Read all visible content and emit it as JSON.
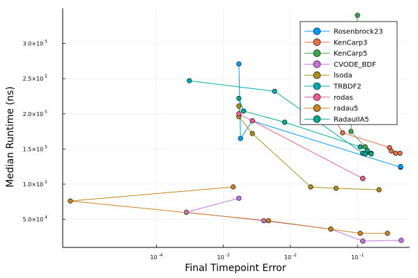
{
  "chart_data": {
    "type": "line",
    "xlabel": "Final Timepoint Error",
    "ylabel": "Median Runtime (ns)",
    "xscale": "log",
    "xlim": [
      4e-06,
      0.6
    ],
    "ylim": [
      10000,
      350000
    ],
    "x_ticks": [
      {
        "value": 0.0001,
        "label": "10",
        "exp": "-4"
      },
      {
        "value": 0.001,
        "label": "10",
        "exp": "-3"
      },
      {
        "value": 0.01,
        "label": "10",
        "exp": "-2"
      },
      {
        "value": 0.1,
        "label": "10",
        "exp": "-1"
      }
    ],
    "y_ticks": [
      {
        "value": 50000,
        "label": "5.0×10",
        "exp": "4"
      },
      {
        "value": 100000,
        "label": "1.0×10",
        "exp": "5"
      },
      {
        "value": 150000,
        "label": "1.5×10",
        "exp": "5"
      },
      {
        "value": 200000,
        "label": "2.0×10",
        "exp": "5"
      },
      {
        "value": 250000,
        "label": "2.5×10",
        "exp": "5"
      },
      {
        "value": 300000,
        "label": "3.0×10",
        "exp": "5"
      }
    ],
    "grid": true,
    "legend_position": "top-right",
    "series": [
      {
        "name": "Rosenbrock23",
        "color": "#009AFA",
        "points": [
          [
            0.0017,
            271000
          ],
          [
            0.0018,
            165000
          ],
          [
            0.0027,
            190000
          ],
          [
            0.44,
            124000
          ],
          [
            0.44,
            125000
          ]
        ]
      },
      {
        "name": "KenCarp3",
        "color": "#E36F47",
        "points": [
          [
            0.017,
            266000
          ],
          [
            0.06,
            173000
          ],
          [
            0.3,
            152000
          ],
          [
            0.32,
            147000
          ],
          [
            0.37,
            144000
          ],
          [
            0.43,
            144000
          ]
        ]
      },
      {
        "name": "KenCarp5",
        "color": "#3EA44E",
        "points": [
          [
            0.1,
            340000
          ],
          [
            0.08,
            175000
          ],
          [
            0.13,
            153000
          ],
          [
            0.14,
            145000
          ],
          [
            0.16,
            144000
          ]
        ]
      },
      {
        "name": "CVODE_BDF",
        "color": "#C372DC",
        "points": [
          [
            0.0017,
            80000
          ],
          [
            0.00028,
            60000
          ],
          [
            0.004,
            48000
          ],
          [
            0.04,
            36000
          ],
          [
            0.12,
            19000
          ],
          [
            0.45,
            20000
          ]
        ]
      },
      {
        "name": "lsoda",
        "color": "#AC8E18",
        "points": [
          [
            0.0017,
            211000
          ],
          [
            0.0017,
            196000
          ],
          [
            0.0027,
            172000
          ],
          [
            0.02,
            96000
          ],
          [
            0.048,
            94000
          ],
          [
            0.21,
            92000
          ]
        ]
      },
      {
        "name": "TRBDF2",
        "color": "#00A9AD",
        "points": [
          [
            0.00031,
            247000
          ],
          [
            0.0058,
            232000
          ],
          [
            0.12,
            144000
          ],
          [
            0.12,
            144000
          ]
        ]
      },
      {
        "name": "rodas",
        "color": "#ED5E93",
        "points": [
          [
            0.0017,
            200000
          ],
          [
            0.0027,
            190000
          ],
          [
            0.12,
            108000
          ],
          [
            0.12,
            108000
          ]
        ]
      },
      {
        "name": "radau5",
        "color": "#C68225",
        "points": [
          [
            0.0014,
            96000
          ],
          [
            5.2e-06,
            76000
          ],
          [
            0.0047,
            48000
          ],
          [
            0.04,
            36000
          ],
          [
            0.11,
            30000
          ],
          [
            0.28,
            30000
          ]
        ]
      },
      {
        "name": "RadauIIA5",
        "color": "#00A98D",
        "points": [
          [
            0.0017,
            222000
          ],
          [
            0.002,
            204000
          ],
          [
            0.0082,
            188000
          ],
          [
            0.11,
            153000
          ],
          [
            0.14,
            148000
          ],
          [
            0.13,
            143000
          ],
          [
            0.16,
            143000
          ]
        ]
      }
    ]
  }
}
